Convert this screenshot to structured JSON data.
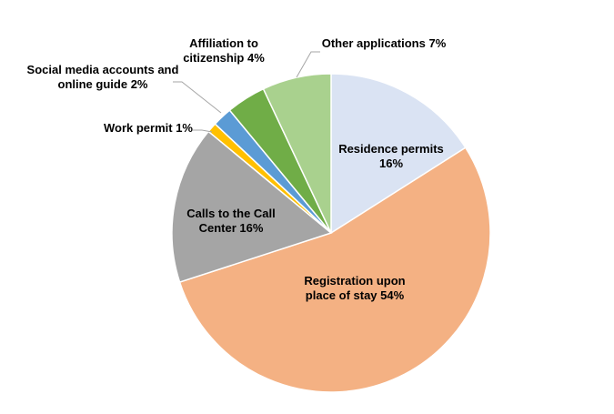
{
  "chart_data": {
    "type": "pie",
    "categories": [
      "Residence permits",
      "Registration upon place of stay",
      "Calls to the Call Center",
      "Work permit",
      "Social media accounts and online guide",
      "Affiliation to citizenship",
      "Other applications"
    ],
    "values": [
      16,
      54,
      16,
      1,
      2,
      4,
      7
    ],
    "value_labels": [
      "16%",
      "54%",
      "16%",
      "1%",
      "2%",
      "4%",
      "7%"
    ],
    "colors": [
      "#dae3f3",
      "#f4b183",
      "#a5a5a5",
      "#ffc000",
      "#5b9bd5",
      "#70ad47",
      "#a9d18e"
    ]
  }
}
